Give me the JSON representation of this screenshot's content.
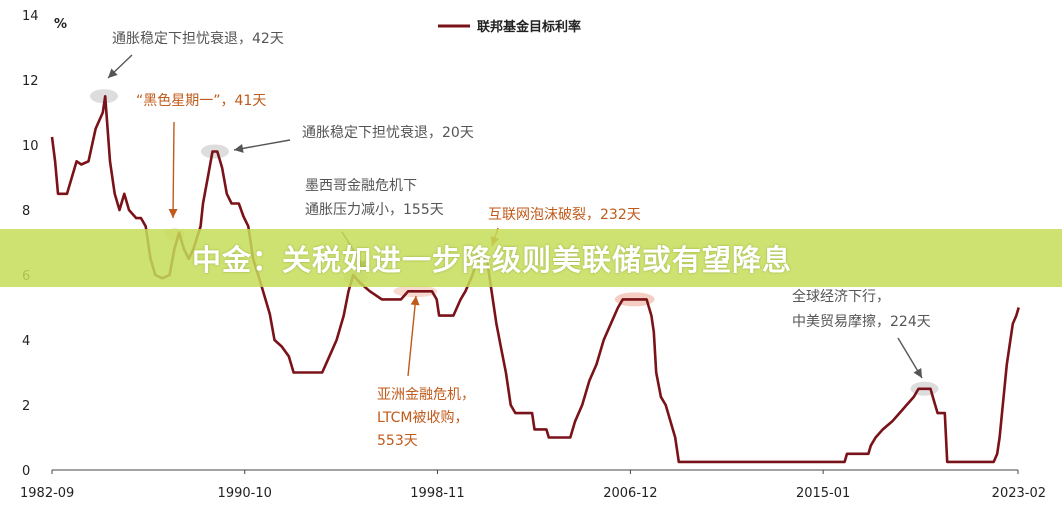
{
  "banner": {
    "text": "中金：关税如进一步降级则美联储或有望降息"
  },
  "colors": {
    "line": "#7a1219",
    "gray_annotation": "#555555",
    "orange_annotation": "#c05a1a",
    "highlight": "#f3c9bd",
    "banner": "#c4dd58"
  },
  "chart_data": {
    "type": "line",
    "title": "",
    "xlabel": "",
    "ylabel": "%",
    "ylim": [
      0,
      14
    ],
    "yticks": [
      0,
      2,
      4,
      6,
      8,
      10,
      12,
      14
    ],
    "xticks": [
      "1982-09",
      "1990-10",
      "1998-11",
      "2006-12",
      "2015-01",
      "2023-02"
    ],
    "legend": {
      "label": "联邦基金目标利率",
      "position": "top-right"
    },
    "series": [
      {
        "name": "联邦基金目标利率",
        "color": "#7a1219",
        "points": [
          [
            1982.67,
            10.25
          ],
          [
            1982.8,
            9.5
          ],
          [
            1982.92,
            8.5
          ],
          [
            1983.3,
            8.5
          ],
          [
            1983.5,
            9.0
          ],
          [
            1983.7,
            9.5
          ],
          [
            1983.9,
            9.4
          ],
          [
            1984.2,
            9.5
          ],
          [
            1984.5,
            10.5
          ],
          [
            1984.8,
            11.0
          ],
          [
            1984.9,
            11.5
          ],
          [
            1985.0,
            10.5
          ],
          [
            1985.1,
            9.5
          ],
          [
            1985.3,
            8.5
          ],
          [
            1985.5,
            8.0
          ],
          [
            1985.7,
            8.5
          ],
          [
            1985.9,
            8.0
          ],
          [
            1986.2,
            7.75
          ],
          [
            1986.4,
            7.75
          ],
          [
            1986.6,
            7.5
          ],
          [
            1986.8,
            6.5
          ],
          [
            1987.0,
            6.0
          ],
          [
            1987.3,
            5.9
          ],
          [
            1987.6,
            6.0
          ],
          [
            1987.8,
            6.8
          ],
          [
            1988.0,
            7.3
          ],
          [
            1988.2,
            6.8
          ],
          [
            1988.4,
            6.5
          ],
          [
            1988.6,
            6.8
          ],
          [
            1988.9,
            7.5
          ],
          [
            1989.0,
            8.2
          ],
          [
            1989.2,
            9.0
          ],
          [
            1989.4,
            9.8
          ],
          [
            1989.6,
            9.8
          ],
          [
            1989.8,
            9.3
          ],
          [
            1990.0,
            8.5
          ],
          [
            1990.2,
            8.2
          ],
          [
            1990.5,
            8.2
          ],
          [
            1990.7,
            7.8
          ],
          [
            1990.9,
            7.5
          ],
          [
            1991.1,
            6.5
          ],
          [
            1991.4,
            5.8
          ],
          [
            1991.6,
            5.3
          ],
          [
            1991.8,
            4.8
          ],
          [
            1992.0,
            4.0
          ],
          [
            1992.3,
            3.8
          ],
          [
            1992.6,
            3.5
          ],
          [
            1992.8,
            3.0
          ],
          [
            1993.5,
            3.0
          ],
          [
            1994.0,
            3.0
          ],
          [
            1994.3,
            3.5
          ],
          [
            1994.6,
            4.0
          ],
          [
            1994.9,
            4.75
          ],
          [
            1995.1,
            5.5
          ],
          [
            1995.3,
            6.0
          ],
          [
            1995.6,
            5.75
          ],
          [
            1996.0,
            5.5
          ],
          [
            1996.5,
            5.25
          ],
          [
            1997.3,
            5.25
          ],
          [
            1997.6,
            5.5
          ],
          [
            1998.0,
            5.5
          ],
          [
            1998.6,
            5.5
          ],
          [
            1998.8,
            5.25
          ],
          [
            1998.9,
            4.75
          ],
          [
            1999.5,
            4.75
          ],
          [
            1999.8,
            5.25
          ],
          [
            2000.0,
            5.5
          ],
          [
            2000.3,
            6.0
          ],
          [
            2000.5,
            6.5
          ],
          [
            2000.9,
            6.5
          ],
          [
            2001.1,
            5.5
          ],
          [
            2001.3,
            4.5
          ],
          [
            2001.5,
            3.75
          ],
          [
            2001.7,
            3.0
          ],
          [
            2001.9,
            2.0
          ],
          [
            2002.1,
            1.75
          ],
          [
            2002.8,
            1.75
          ],
          [
            2002.9,
            1.25
          ],
          [
            2003.4,
            1.25
          ],
          [
            2003.5,
            1.0
          ],
          [
            2004.4,
            1.0
          ],
          [
            2004.6,
            1.5
          ],
          [
            2004.9,
            2.0
          ],
          [
            2005.2,
            2.75
          ],
          [
            2005.5,
            3.25
          ],
          [
            2005.8,
            4.0
          ],
          [
            2006.1,
            4.5
          ],
          [
            2006.4,
            5.0
          ],
          [
            2006.6,
            5.25
          ],
          [
            2007.6,
            5.25
          ],
          [
            2007.8,
            4.75
          ],
          [
            2007.9,
            4.25
          ],
          [
            2008.0,
            3.0
          ],
          [
            2008.2,
            2.25
          ],
          [
            2008.4,
            2.0
          ],
          [
            2008.8,
            1.0
          ],
          [
            2008.95,
            0.25
          ],
          [
            2015.9,
            0.25
          ],
          [
            2016.0,
            0.5
          ],
          [
            2016.9,
            0.5
          ],
          [
            2017.0,
            0.75
          ],
          [
            2017.2,
            1.0
          ],
          [
            2017.5,
            1.25
          ],
          [
            2017.9,
            1.5
          ],
          [
            2018.2,
            1.75
          ],
          [
            2018.5,
            2.0
          ],
          [
            2018.8,
            2.25
          ],
          [
            2019.0,
            2.5
          ],
          [
            2019.5,
            2.5
          ],
          [
            2019.6,
            2.25
          ],
          [
            2019.7,
            2.0
          ],
          [
            2019.8,
            1.75
          ],
          [
            2020.1,
            1.75
          ],
          [
            2020.2,
            0.25
          ],
          [
            2022.15,
            0.25
          ],
          [
            2022.3,
            0.5
          ],
          [
            2022.4,
            1.0
          ],
          [
            2022.5,
            1.75
          ],
          [
            2022.6,
            2.5
          ],
          [
            2022.7,
            3.25
          ],
          [
            2022.85,
            4.0
          ],
          [
            2022.95,
            4.5
          ],
          [
            2023.1,
            4.75
          ],
          [
            2023.2,
            5.0
          ]
        ]
      }
    ],
    "annotations": [
      {
        "text": "通胀稳定下担忧衰退，42天",
        "color": "gray",
        "target": [
          1984.85,
          11.5
        ]
      },
      {
        "text": "“黑色星期一”，41天",
        "color": "orange",
        "target": [
          1987.8,
          7.2
        ]
      },
      {
        "text": "通胀稳定下担忧衰退，20天",
        "color": "gray",
        "target": [
          1989.5,
          9.8
        ]
      },
      {
        "text": "墨西哥金融危机下",
        "text2": "通胀压力减小，155天",
        "color": "gray",
        "target": [
          1995.3,
          6.0
        ]
      },
      {
        "text": "互联网泡沫破裂，232天",
        "color": "orange",
        "target": [
          2007.2,
          5.25
        ]
      },
      {
        "text": "亚洲金融危机，",
        "text2": "LTCM被收购，",
        "text3": "553天",
        "color": "orange",
        "target": [
          1997.8,
          5.4
        ]
      },
      {
        "text": "全球经济下行，",
        "text2": "中美贸易摩擦，224天",
        "color": "gray",
        "target": [
          2019.2,
          2.5
        ]
      }
    ]
  }
}
